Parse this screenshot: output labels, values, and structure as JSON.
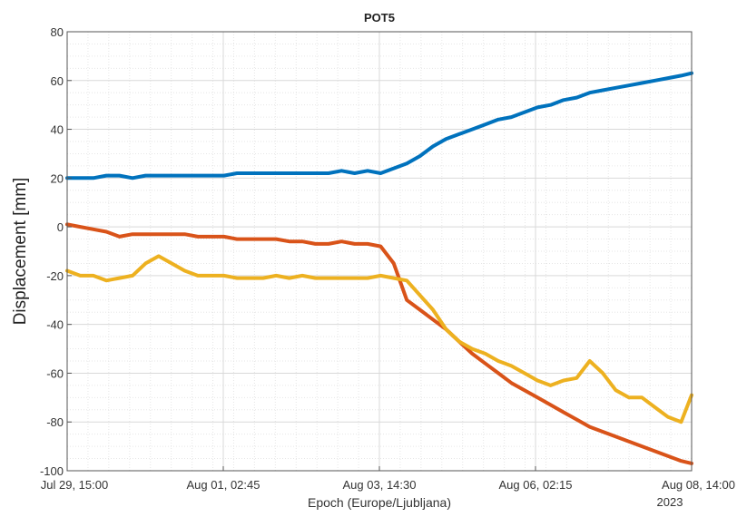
{
  "chart_data": {
    "type": "line",
    "title": "POT5",
    "xlabel": "Epoch (Europe/Ljubljana)",
    "ylabel": "Displacement [mm]",
    "x_tick_labels": [
      "Jul 29, 15:00",
      "Aug 01, 02:45",
      "Aug 03, 14:30",
      "Aug 06, 02:15",
      "Aug 08, 14:00"
    ],
    "x_secondary_label": "2023",
    "x_tick_values": [
      0,
      59.75,
      119.5,
      179.25,
      239
    ],
    "xlim": [
      0,
      239
    ],
    "ylim": [
      -100,
      80
    ],
    "y_ticks": [
      -100,
      -80,
      -60,
      -40,
      -20,
      0,
      20,
      40,
      60,
      80
    ],
    "grid": true,
    "minor_grid": true,
    "colors": {
      "series1": "#0072BD",
      "series2": "#D95319",
      "series3": "#EDB120",
      "grid": "#d9d9d9",
      "minor_grid": "#e6e6e6",
      "axis": "#555555"
    },
    "series": [
      {
        "x": [
          0,
          5,
          10,
          15,
          20,
          25,
          30,
          35,
          40,
          45,
          50,
          55,
          60,
          65,
          70,
          75,
          80,
          85,
          90,
          95,
          100,
          105,
          110,
          115,
          120,
          125,
          130,
          135,
          140,
          145,
          150,
          155,
          160,
          165,
          170,
          175,
          180,
          185,
          190,
          195,
          200,
          205,
          210,
          215,
          220,
          225,
          230,
          235,
          239
        ],
        "values": [
          20,
          20,
          20,
          21,
          21,
          20,
          21,
          21,
          21,
          21,
          21,
          21,
          21,
          22,
          22,
          22,
          22,
          22,
          22,
          22,
          22,
          23,
          22,
          23,
          22,
          24,
          26,
          29,
          33,
          36,
          38,
          40,
          42,
          44,
          45,
          47,
          49,
          50,
          52,
          53,
          55,
          56,
          57,
          58,
          59,
          60,
          61,
          62,
          63
        ]
      },
      {
        "x": [
          0,
          5,
          10,
          15,
          20,
          25,
          30,
          35,
          40,
          45,
          50,
          55,
          60,
          65,
          70,
          75,
          80,
          85,
          90,
          95,
          100,
          105,
          110,
          115,
          120,
          125,
          130,
          135,
          140,
          145,
          150,
          155,
          160,
          165,
          170,
          175,
          180,
          185,
          190,
          195,
          200,
          205,
          210,
          215,
          220,
          225,
          230,
          235,
          239
        ],
        "values": [
          1,
          0,
          -1,
          -2,
          -4,
          -3,
          -3,
          -3,
          -3,
          -3,
          -4,
          -4,
          -4,
          -5,
          -5,
          -5,
          -5,
          -6,
          -6,
          -7,
          -7,
          -6,
          -7,
          -7,
          -8,
          -15,
          -30,
          -34,
          -38,
          -42,
          -47,
          -52,
          -56,
          -60,
          -64,
          -67,
          -70,
          -73,
          -76,
          -79,
          -82,
          -84,
          -86,
          -88,
          -90,
          -92,
          -94,
          -96,
          -97
        ]
      },
      {
        "x": [
          0,
          5,
          10,
          15,
          20,
          25,
          30,
          35,
          40,
          45,
          50,
          55,
          60,
          65,
          70,
          75,
          80,
          85,
          90,
          95,
          100,
          105,
          110,
          115,
          120,
          125,
          130,
          135,
          140,
          145,
          150,
          155,
          160,
          165,
          170,
          175,
          180,
          185,
          190,
          195,
          200,
          205,
          210,
          215,
          220,
          225,
          230,
          235,
          239
        ],
        "values": [
          -18,
          -20,
          -20,
          -22,
          -21,
          -20,
          -15,
          -12,
          -15,
          -18,
          -20,
          -20,
          -20,
          -21,
          -21,
          -21,
          -20,
          -21,
          -20,
          -21,
          -21,
          -21,
          -21,
          -21,
          -20,
          -21,
          -22,
          -28,
          -34,
          -42,
          -47,
          -50,
          -52,
          -55,
          -57,
          -60,
          -63,
          -65,
          -63,
          -62,
          -55,
          -60,
          -67,
          -70,
          -70,
          -74,
          -78,
          -80,
          -69
        ]
      }
    ]
  }
}
